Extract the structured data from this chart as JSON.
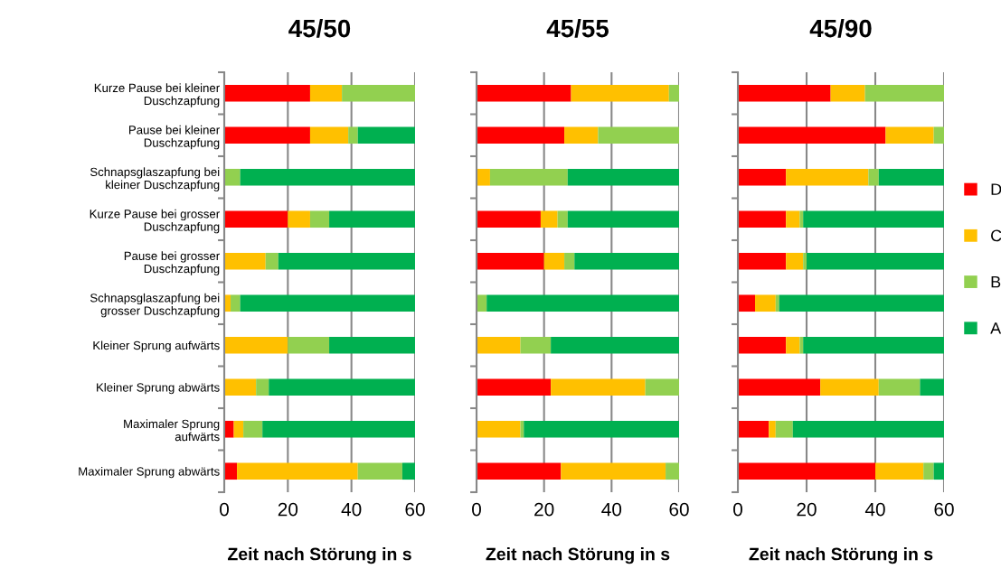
{
  "chart_data": [
    {
      "type": "bar",
      "orientation": "horizontal",
      "stacked": true,
      "title": "45/50",
      "xlabel": "Zeit nach Störung in s",
      "categories": [
        "Kurze Pause bei kleiner Duschzapfung",
        "Pause bei kleiner Duschzapfung",
        "Schnapsglaszapfung bei kleiner Duschzapfung",
        "Kurze Pause bei grosser Duschzapfung",
        "Pause bei grosser Duschzapfung",
        "Schnapsglaszapfung bei grosser Duschzapfung",
        "Kleiner Sprung aufwärts",
        "Kleiner Sprung abwärts",
        "Maximaler Sprung aufwärts",
        "Maximaler Sprung abwärts"
      ],
      "series": [
        {
          "name": "D",
          "color": "#ff0000",
          "values": [
            27,
            27,
            0,
            20,
            0,
            0,
            0,
            0,
            3,
            4
          ]
        },
        {
          "name": "C",
          "color": "#ffc000",
          "values": [
            10,
            12,
            0,
            7,
            13,
            2,
            20,
            10,
            3,
            38
          ]
        },
        {
          "name": "B",
          "color": "#92d050",
          "values": [
            23,
            3,
            5,
            6,
            4,
            3,
            13,
            4,
            6,
            14
          ]
        },
        {
          "name": "A",
          "color": "#00b050",
          "values": [
            0,
            18,
            55,
            27,
            43,
            55,
            27,
            46,
            48,
            4
          ]
        }
      ],
      "xlim": [
        0,
        60
      ],
      "xticks": [
        0,
        20,
        40,
        60
      ],
      "grid": "x",
      "legend": "right"
    },
    {
      "type": "bar",
      "orientation": "horizontal",
      "stacked": true,
      "title": "45/55",
      "xlabel": "Zeit nach Störung in s",
      "categories": [
        null,
        null,
        null,
        null,
        null,
        null,
        null,
        null,
        null,
        null
      ],
      "series": [
        {
          "color": "#ff0000",
          "values": [
            28,
            26,
            0,
            19,
            20,
            0,
            0,
            22,
            0,
            25
          ]
        },
        {
          "color": "#ffc000",
          "values": [
            29,
            10,
            4,
            5,
            6,
            0,
            13,
            28,
            13,
            31
          ]
        },
        {
          "color": "#92d050",
          "values": [
            3,
            24,
            23,
            3,
            3,
            3,
            9,
            10,
            1,
            4
          ]
        },
        {
          "color": "#00b050",
          "values": [
            0,
            0,
            33,
            33,
            31,
            57,
            38,
            0,
            46,
            0
          ]
        }
      ],
      "xlim": [
        0,
        60
      ],
      "xticks": [
        0,
        20,
        40,
        60
      ],
      "grid": "x"
    },
    {
      "type": "bar",
      "orientation": "horizontal",
      "stacked": true,
      "title": "45/90",
      "xlabel": "Zeit nach Störung in s",
      "categories": [
        null,
        null,
        null,
        null,
        null,
        null,
        null,
        null,
        null,
        null
      ],
      "series": [
        {
          "color": "#ff0000",
          "values": [
            27,
            43,
            14,
            14,
            14,
            5,
            14,
            24,
            9,
            40
          ]
        },
        {
          "color": "#ffc000",
          "values": [
            10,
            14,
            24,
            4,
            5,
            6,
            4,
            17,
            2,
            14
          ]
        },
        {
          "color": "#92d050",
          "values": [
            23,
            3,
            3,
            1,
            1,
            1,
            1,
            12,
            5,
            3
          ]
        },
        {
          "color": "#00b050",
          "values": [
            0,
            0,
            19,
            41,
            40,
            48,
            41,
            7,
            44,
            3
          ]
        }
      ],
      "xlim": [
        0,
        60
      ],
      "xticks": [
        0,
        20,
        40,
        60
      ],
      "grid": "x"
    }
  ]
}
